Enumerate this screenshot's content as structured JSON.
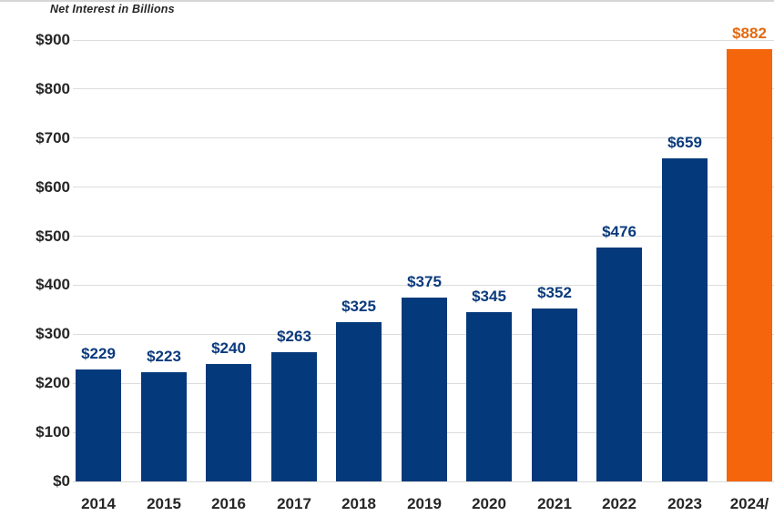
{
  "chart_data": {
    "type": "bar",
    "title": "Net Interest in Billions",
    "categories": [
      "2014",
      "2015",
      "2016",
      "2017",
      "2018",
      "2019",
      "2020",
      "2021",
      "2022",
      "2023",
      "2024/"
    ],
    "values": [
      229,
      223,
      240,
      263,
      325,
      375,
      345,
      352,
      476,
      659,
      882
    ],
    "value_labels": [
      "$229",
      "$223",
      "$240",
      "$263",
      "$325",
      "$375",
      "$345",
      "$352",
      "$476",
      "$659",
      "$882"
    ],
    "y_ticks": [
      "$0",
      "$100",
      "$200",
      "$300",
      "$400",
      "$500",
      "$600",
      "$700",
      "$800",
      "$900"
    ],
    "ylim": [
      0,
      900
    ],
    "grid": true,
    "legend_position": "none",
    "highlight_index": 10
  },
  "colors": {
    "bar": "#04397B",
    "highlight_bar": "#F4650C",
    "value_label": "#0A3A7C",
    "highlight_value_label": "#E5690F",
    "axis_text": "#262626",
    "title_text": "#262626",
    "gridline": "#DCDCDC"
  }
}
